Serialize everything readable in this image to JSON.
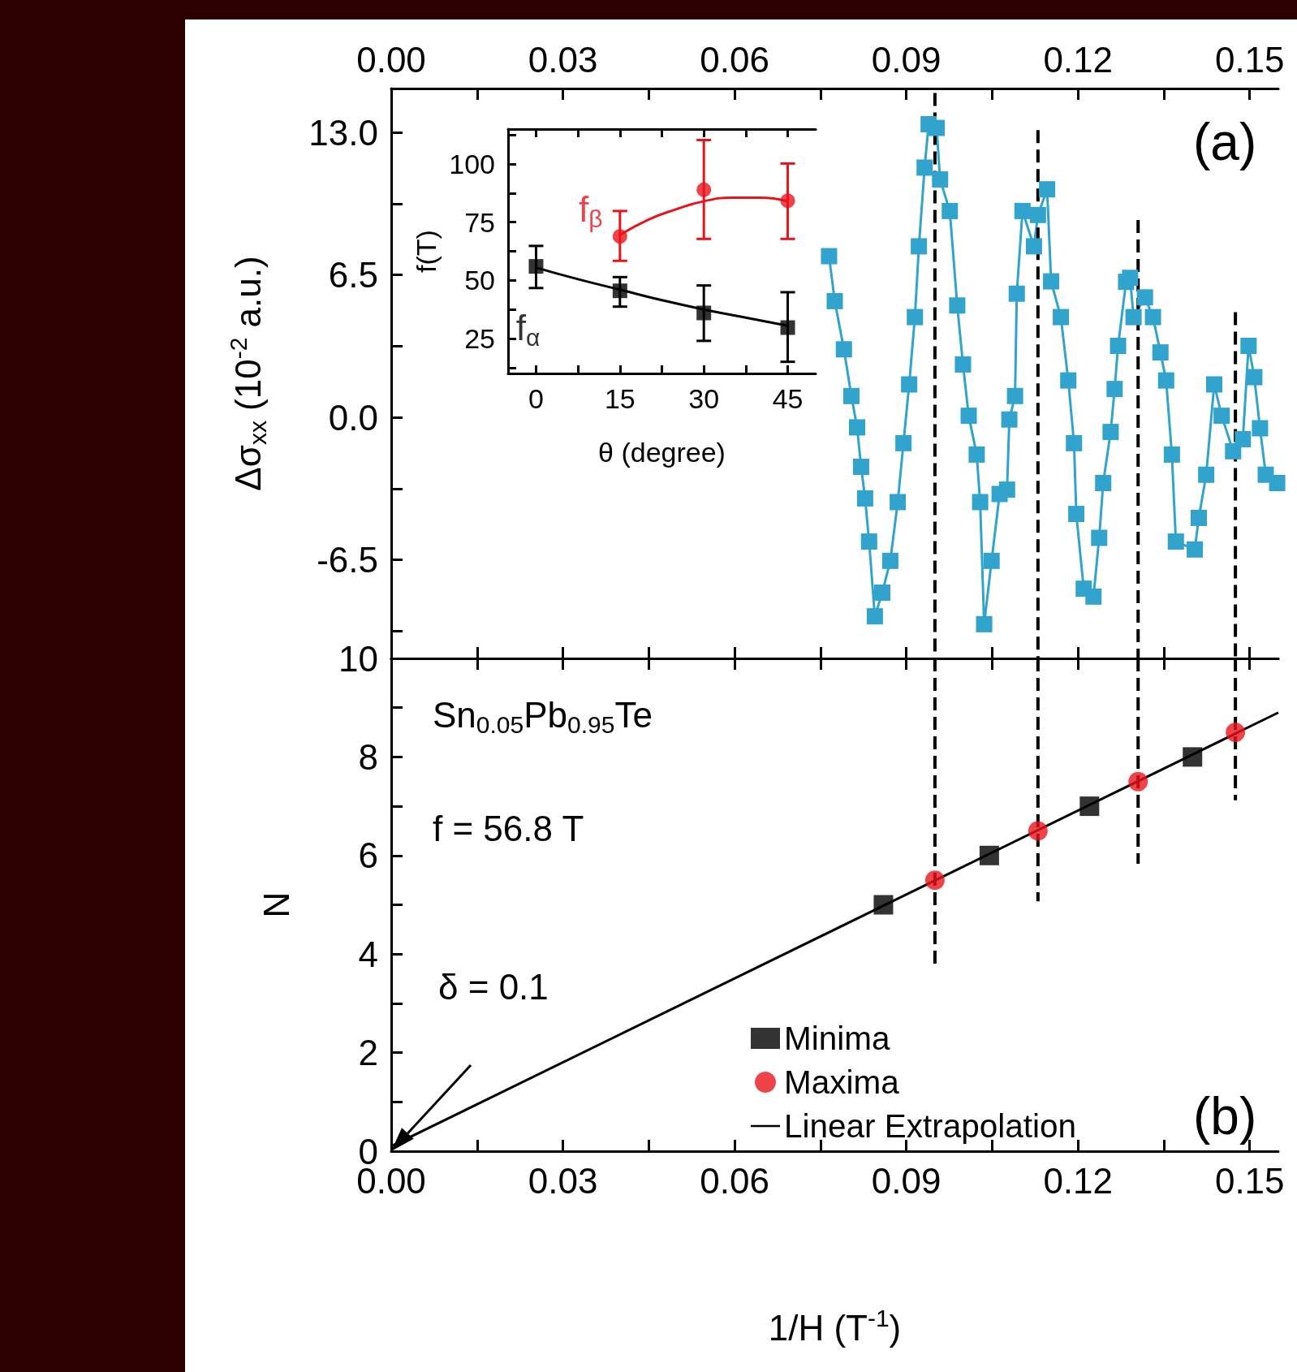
{
  "chart_data": [
    {
      "type": "line",
      "ylabel": "Δσ$_{xx}$ (10$^{-2}$ a.u.)",
      "annotations": [
        "(a)"
      ],
      "tick_labels": "y",
      "xlim": [
        0,
        0.155
      ],
      "xticks": [
        0,
        0.015,
        0.03,
        0.045,
        0.06,
        0.075,
        0.09,
        0.105,
        0.12,
        0.135,
        0.15
      ],
      "x2lim": [
        0,
        0.155
      ],
      "x2ticks": [
        {
          "value": 0,
          "label": "0.00"
        },
        {
          "value": 0.015,
          "label": null
        },
        {
          "value": 0.03,
          "label": "0.03"
        },
        {
          "value": 0.045,
          "label": null
        },
        {
          "value": 0.06,
          "label": "0.06"
        },
        {
          "value": 0.075,
          "label": null
        },
        {
          "value": 0.09,
          "label": "0.09"
        },
        {
          "value": 0.105,
          "label": null
        },
        {
          "value": 0.12,
          "label": "0.12"
        },
        {
          "value": 0.135,
          "label": null
        },
        {
          "value": 0.15,
          "label": "0.15"
        }
      ],
      "ylim": [
        -11,
        15
      ],
      "yticks": [
        {
          "value": -9.75,
          "label": null
        },
        -6.5,
        {
          "value": -3.25,
          "label": null
        },
        {
          "value": 0,
          "label": "0.0"
        },
        {
          "value": 3.25,
          "label": null
        },
        6.5,
        {
          "value": 9.75,
          "label": null
        },
        {
          "value": 13,
          "label": "13.0"
        }
      ],
      "series": [
        {
          "color": "#31a3cc",
          "marker": "square",
          "x": [
            0.0765,
            0.0775,
            0.0791,
            0.0804,
            0.0814,
            0.0821,
            0.0828,
            0.0835,
            0.0845,
            0.0858,
            0.0872,
            0.0885,
            0.0895,
            0.0905,
            0.0915,
            0.0922,
            0.0932,
            0.0939,
            0.0953,
            0.0959,
            0.0976,
            0.0989,
            0.0999,
            0.1009,
            0.1023,
            0.1029,
            0.1036,
            0.1049,
            0.1063,
            0.1076,
            0.108,
            0.109,
            0.1093,
            0.1103,
            0.1123,
            0.113,
            0.1146,
            0.1153,
            0.117,
            0.1183,
            0.1193,
            0.1197,
            0.121,
            0.1227,
            0.1237,
            0.1244,
            0.1257,
            0.1264,
            0.127,
            0.1284,
            0.1291,
            0.1297,
            0.1317,
            0.1331,
            0.1344,
            0.1354,
            0.1364,
            0.1371,
            0.1404,
            0.1411,
            0.1424,
            0.1438,
            0.1451,
            0.1471,
            0.1488,
            0.1498,
            0.1508,
            0.1518,
            0.1528,
            0.1548
          ],
          "values": [
            7.35,
            5.3,
            3.1,
            0.97,
            -0.46,
            -2.26,
            -3.7,
            -5.67,
            -9.08,
            -8.0,
            -6.55,
            -3.87,
            -1.18,
            1.5,
            4.57,
            7.8,
            11.39,
            13.37,
            13.2,
            10.85,
            9.41,
            5.1,
            2.41,
            0.07,
            -1.7,
            -3.87,
            -9.44,
            -6.55,
            -3.5,
            -3.3,
            -0.1,
            0.97,
            5.64,
            9.41,
            7.8,
            9.23,
            10.4,
            6.2,
            4.57,
            1.68,
            -1.18,
            -4.41,
            -7.82,
            -8.18,
            -5.5,
            -3.0,
            -0.67,
            1.29,
            3.26,
            6.18,
            6.36,
            4.57,
            5.47,
            4.57,
            2.96,
            1.68,
            -1.7,
            -5.67,
            -6.03,
            -4.59,
            -2.62,
            1.5,
            0.07,
            -1.55,
            -1.0,
            3.26,
            1.83,
            -0.5,
            -2.62,
            -3.0
          ]
        },
        {
          "color": "#000000",
          "marker": "none",
          "line_style": "dashed",
          "x": [
            0.095,
            0.095
          ],
          "values": [
            14.8,
            -11
          ]
        },
        {
          "color": "#000000",
          "marker": "none",
          "line_style": "dashed",
          "x": [
            0.113,
            0.113
          ],
          "values": [
            13.1,
            -11
          ]
        },
        {
          "color": "#000000",
          "marker": "none",
          "line_style": "dashed",
          "x": [
            0.1305,
            0.1305
          ],
          "values": [
            9,
            -11
          ]
        },
        {
          "color": "#000000",
          "marker": "none",
          "line_style": "dashed",
          "x": [
            0.1475,
            0.1475
          ],
          "values": [
            4.8,
            -11
          ]
        }
      ]
    },
    {
      "type": "scatter",
      "xlabel": "θ (degree)",
      "ylabel": "f(T)",
      "xlim": [
        -5,
        50
      ],
      "xticks": [
        0,
        {
          "value": 7.5,
          "label": null
        },
        15,
        {
          "value": 22.5,
          "label": null
        },
        30,
        {
          "value": 37.5,
          "label": null
        },
        45
      ],
      "ylim": [
        10,
        115
      ],
      "yticks": [
        {
          "value": 12.5,
          "label": null
        },
        25,
        {
          "value": 37.5,
          "label": null
        },
        50,
        {
          "value": 62.5,
          "label": null
        },
        75,
        {
          "value": 87.5,
          "label": null
        },
        100,
        {
          "value": 112.5,
          "label": null
        }
      ],
      "series": [
        {
          "name": "f$_{α}$",
          "color": "#000000",
          "marker": "square",
          "x": [
            0,
            15,
            30,
            45
          ],
          "values": [
            56,
            45.5,
            36,
            29.7
          ],
          "errors": [
            [
              46.7,
              64.8
            ],
            [
              38.7,
              51.4
            ],
            [
              24,
              47.8
            ],
            [
              15,
              44.9
            ]
          ]
        },
        {
          "name": "f$_{β}$",
          "color": "#e8141c",
          "marker": "circle",
          "x": [
            15,
            30,
            45
          ],
          "values": [
            68.9,
            88.9,
            84.2
          ],
          "errors": [
            [
              58.4,
              79.8
            ],
            [
              67.8,
              110.3
            ],
            [
              67.8,
              100.2
            ]
          ]
        },
        {
          "type": "line",
          "color": "#000000",
          "marker": "none",
          "x": [
            0,
            7.5,
            15,
            22.5,
            30,
            37.5,
            45
          ],
          "values": [
            55.5,
            50.5,
            46,
            41.5,
            37.5,
            34,
            30.5
          ]
        },
        {
          "type": "line",
          "color": "#e8141c",
          "marker": "none",
          "x": [
            15,
            20,
            25,
            30,
            35,
            40,
            45
          ],
          "values": [
            69.5,
            76,
            80.5,
            84,
            85.5,
            85.5,
            84
          ]
        }
      ]
    },
    {
      "type": "scatter",
      "xlabel": "1/H (T$^{-1}$)",
      "ylabel": "N",
      "legend": "bottom",
      "annotations": [
        "Sn$_{0.05}$Pb$_{0.95}$Te",
        "f = 56.8 T",
        "δ = 0.1",
        "(b)"
      ],
      "xlim": [
        0,
        0.155
      ],
      "xticks": [
        {
          "value": 0,
          "label": "0.00"
        },
        {
          "value": 0.015,
          "label": null
        },
        {
          "value": 0.03,
          "label": "0.03"
        },
        {
          "value": 0.045,
          "label": null
        },
        {
          "value": 0.06,
          "label": "0.06"
        },
        {
          "value": 0.075,
          "label": null
        },
        {
          "value": 0.09,
          "label": "0.09"
        },
        {
          "value": 0.105,
          "label": null
        },
        {
          "value": 0.12,
          "label": "0.12"
        },
        {
          "value": 0.135,
          "label": null
        },
        {
          "value": 0.15,
          "label": "0.15"
        }
      ],
      "ylim": [
        0,
        10
      ],
      "yticks": [
        0,
        {
          "value": 1,
          "label": null
        },
        2,
        {
          "value": 3,
          "label": null
        },
        4,
        {
          "value": 5,
          "label": null
        },
        6,
        {
          "value": 7,
          "label": null
        },
        8,
        {
          "value": 9,
          "label": null
        },
        10
      ],
      "series": [
        {
          "name": "Minima",
          "color": "#000000",
          "marker": "square",
          "x": [
            0.086,
            0.1045,
            0.122,
            0.14
          ],
          "values": [
            5,
            6,
            7,
            8
          ]
        },
        {
          "name": "Maxima",
          "color": "#e8141c",
          "marker": "circle",
          "x": [
            0.095,
            0.113,
            0.1305,
            0.1475
          ],
          "values": [
            5.5,
            6.5,
            7.5,
            8.5
          ]
        },
        {
          "name": "Linear Extrapolation",
          "type": "line",
          "color": "#000000",
          "marker": "none",
          "x": [
            0,
            0.155
          ],
          "values": [
            0.1,
            8.9
          ]
        },
        {
          "type": "line",
          "color": "#000000",
          "marker": "none",
          "line_style": "dashed",
          "x": [
            0.095,
            0.095
          ],
          "values": [
            10,
            3.74
          ]
        },
        {
          "type": "line",
          "color": "#000000",
          "marker": "none",
          "line_style": "dashed",
          "x": [
            0.113,
            0.113
          ],
          "values": [
            10,
            5.07
          ]
        },
        {
          "type": "line",
          "color": "#000000",
          "marker": "none",
          "line_style": "dashed",
          "x": [
            0.1305,
            0.1305
          ],
          "values": [
            10,
            5.83
          ]
        },
        {
          "type": "line",
          "color": "#000000",
          "marker": "none",
          "line_style": "dashed",
          "x": [
            0.1475,
            0.1475
          ],
          "values": [
            10,
            7.12
          ]
        }
      ]
    }
  ]
}
